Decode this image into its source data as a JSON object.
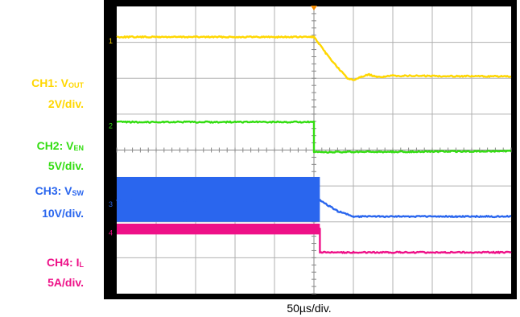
{
  "chart_data": {
    "type": "line",
    "title": "",
    "xlabel": "50µs/div.",
    "ylabel": "",
    "grid": true,
    "x_divisions": 10,
    "y_divisions": 8,
    "trigger_division": 5.0,
    "channels": [
      {
        "id": "CH1",
        "label_prefix": "CH1: V",
        "label_sub": "OUT",
        "scale": "2V/div.",
        "color": "#ffd700",
        "trace": [
          [
            0,
            0.85
          ],
          [
            5.0,
            0.85
          ],
          [
            5.3,
            1.3
          ],
          [
            5.6,
            1.7
          ],
          [
            5.85,
            2.0
          ],
          [
            6.0,
            2.05
          ],
          [
            6.2,
            1.95
          ],
          [
            6.4,
            1.9
          ],
          [
            6.6,
            1.97
          ],
          [
            7.0,
            1.93
          ],
          [
            10,
            1.95
          ]
        ]
      },
      {
        "id": "CH2",
        "label_prefix": "CH2: V",
        "label_sub": "EN",
        "scale": "5V/div.",
        "color": "#33dd11",
        "trace": [
          [
            0,
            3.22
          ],
          [
            5.0,
            3.22
          ],
          [
            5.0,
            4.06
          ],
          [
            10,
            4.03
          ]
        ]
      },
      {
        "id": "CH3",
        "label_prefix": "CH3: V",
        "label_sub": "SW",
        "scale": "10V/div.",
        "color": "#2a66ee",
        "trace": [
          [
            0,
            5.4
          ],
          [
            5.15,
            5.4
          ],
          [
            5.3,
            5.5
          ],
          [
            5.6,
            5.7
          ],
          [
            6.0,
            5.85
          ],
          [
            10,
            5.85
          ]
        ],
        "switching_band": [
          4.75,
          6.0
        ]
      },
      {
        "id": "CH4",
        "label_prefix": "CH4: I",
        "label_sub": "L",
        "scale": "5A/div.",
        "color": "#ee1188",
        "trace": [
          [
            0,
            6.2
          ],
          [
            5.15,
            6.2
          ],
          [
            5.15,
            6.85
          ],
          [
            10,
            6.85
          ]
        ],
        "ripple_band": [
          6.05,
          6.35
        ]
      }
    ]
  }
}
